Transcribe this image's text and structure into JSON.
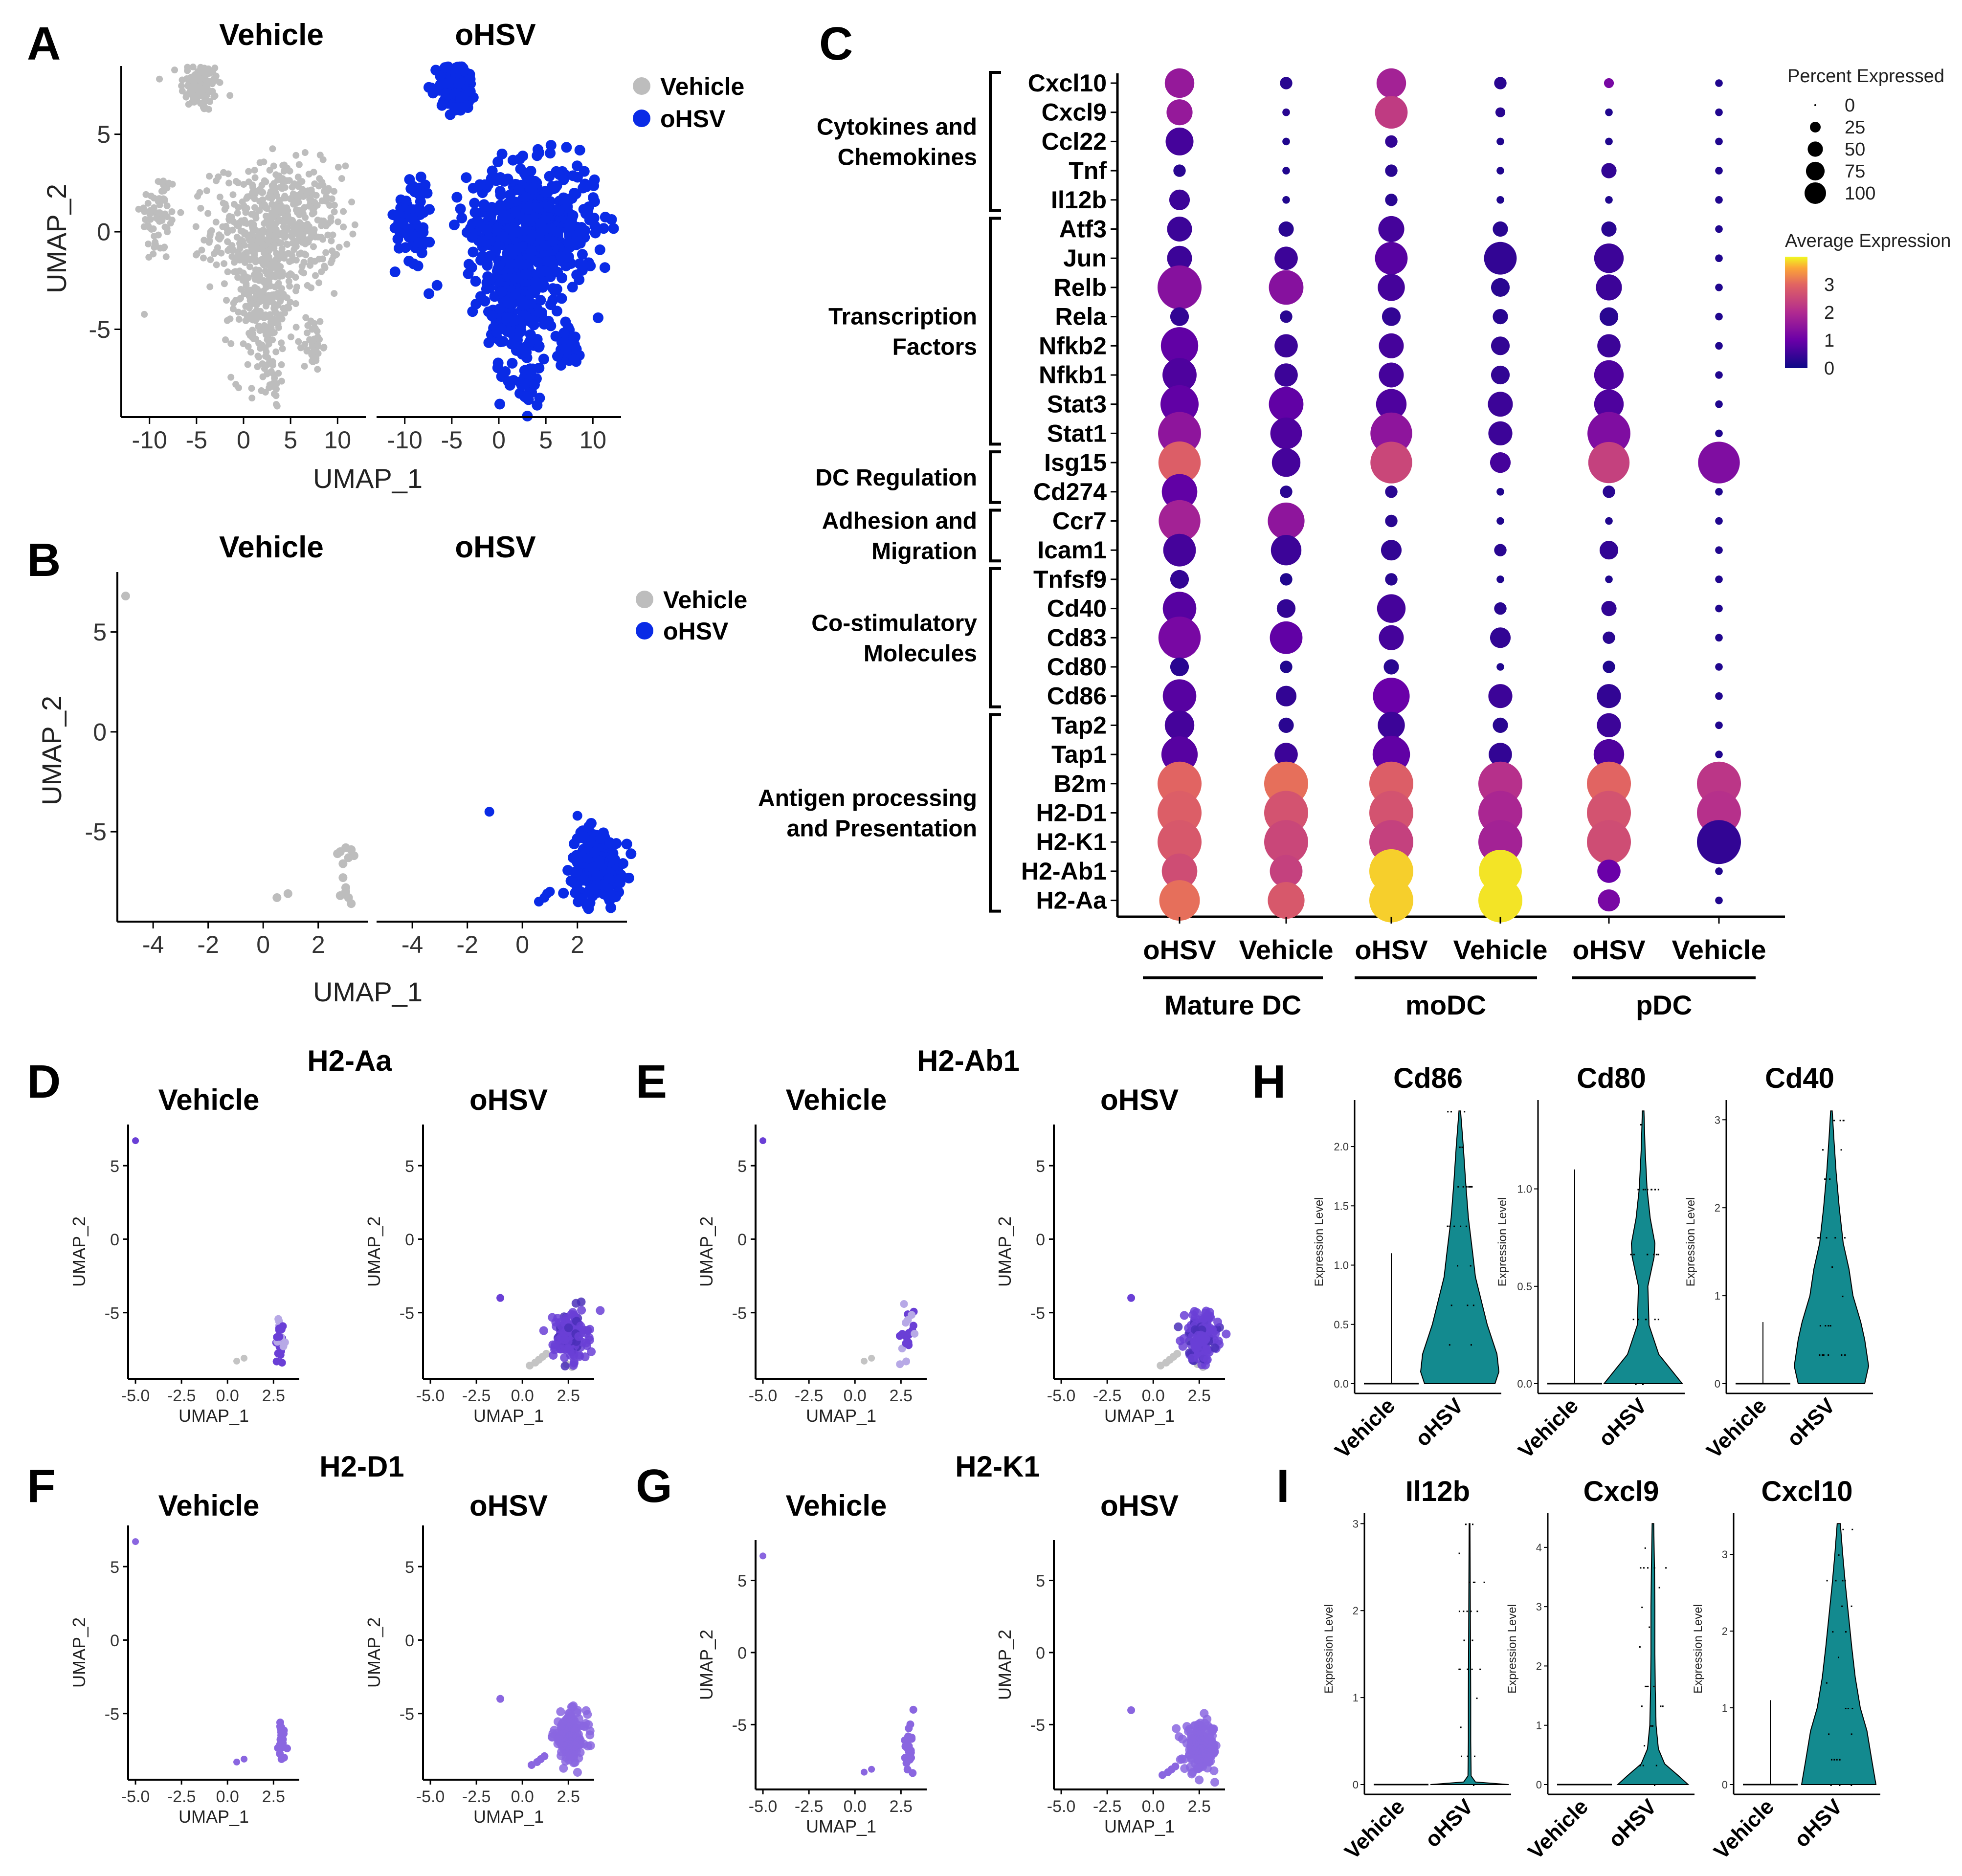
{
  "figure": {
    "panel_letters": [
      "A",
      "B",
      "C",
      "D",
      "E",
      "F",
      "G",
      "H",
      "I"
    ],
    "group_labels": [
      "Vehicle",
      "oHSV"
    ],
    "colors": {
      "vehicle": "#bdbdbd",
      "ohsv": "#0a2be6",
      "purple": "#6a3fd6",
      "violin": "#138a8f"
    }
  },
  "chart_data": [
    {
      "id": "A",
      "type": "scatter",
      "title_left": "Vehicle",
      "title_right": "oHSV",
      "xlabel": "UMAP_1",
      "ylabel": "UMAP_2",
      "xticks": [
        "-10",
        "-5",
        "0",
        "5",
        "10"
      ],
      "yticks": [
        "5",
        "0",
        "-5"
      ],
      "xlim": [
        -13,
        13
      ],
      "ylim": [
        -9.5,
        8.5
      ],
      "legend": [
        {
          "label": "Vehicle",
          "color": "#bdbdbd"
        },
        {
          "label": "oHSV",
          "color": "#0a2be6"
        }
      ],
      "clusters": [
        {
          "cx": -4.5,
          "cy": 7.5,
          "sx": 1.1,
          "sy": 0.7,
          "n": 110
        },
        {
          "cx": -9,
          "cy": 0.8,
          "sx": 1.0,
          "sy": 1.2,
          "n": 70
        },
        {
          "cx": 3.5,
          "cy": 0.2,
          "sx": 3.4,
          "sy": 1.6,
          "n": 520
        },
        {
          "cx": 2.0,
          "cy": -3.6,
          "sx": 1.6,
          "sy": 2.0,
          "n": 240
        },
        {
          "cx": 7.4,
          "cy": -5.8,
          "sx": 0.5,
          "sy": 0.7,
          "n": 40
        },
        {
          "cx": 3.0,
          "cy": -8.0,
          "sx": 0.4,
          "sy": 0.5,
          "n": 20
        }
      ]
    },
    {
      "id": "B",
      "type": "scatter",
      "title_left": "Vehicle",
      "title_right": "oHSV",
      "xlabel": "UMAP_1",
      "ylabel": "UMAP_2",
      "xticks": [
        "-4",
        "-2",
        "0",
        "2"
      ],
      "yticks": [
        "5",
        "0",
        "-5"
      ],
      "xlim": [
        -5.3,
        3.8
      ],
      "ylim": [
        -9.5,
        8.0
      ],
      "legend": [
        {
          "label": "Vehicle",
          "color": "#bdbdbd"
        },
        {
          "label": "oHSV",
          "color": "#0a2be6"
        }
      ],
      "vehicle_points": [
        [
          -5.0,
          6.8
        ],
        [
          0.5,
          -8.3
        ],
        [
          0.9,
          -8.1
        ],
        [
          2.8,
          -6.0
        ],
        [
          3.0,
          -5.8
        ],
        [
          3.1,
          -6.3
        ],
        [
          2.9,
          -6.6
        ],
        [
          3.2,
          -5.9
        ],
        [
          2.9,
          -7.3
        ],
        [
          3.0,
          -7.8
        ],
        [
          3.1,
          -8.3
        ],
        [
          2.8,
          -8.2
        ],
        [
          3.2,
          -8.6
        ],
        [
          3.0,
          -8.0
        ],
        [
          2.7,
          -6.1
        ],
        [
          3.3,
          -6.2
        ]
      ],
      "ohsv_cluster": {
        "cx": 2.7,
        "cy": -6.6,
        "sx": 0.45,
        "sy": 0.85,
        "n": 260
      },
      "ohsv_points": [
        [
          -1.2,
          -4.0
        ],
        [
          0.6,
          -8.5
        ],
        [
          0.8,
          -8.3
        ],
        [
          0.9,
          -8.1
        ],
        [
          1.0,
          -8.0
        ],
        [
          2.0,
          -4.2
        ]
      ]
    },
    {
      "id": "C",
      "type": "dotplot",
      "genes": [
        "Cxcl10",
        "Cxcl9",
        "Ccl22",
        "Tnf",
        "Il12b",
        "Atf3",
        "Jun",
        "Relb",
        "Rela",
        "Nfkb2",
        "Nfkb1",
        "Stat3",
        "Stat1",
        "Isg15",
        "Cd274",
        "Ccr7",
        "Icam1",
        "Tnfsf9",
        "Cd40",
        "Cd83",
        "Cd80",
        "Cd86",
        "Tap2",
        "Tap1",
        "B2m",
        "H2-D1",
        "H2-K1",
        "H2-Ab1",
        "H2-Aa"
      ],
      "categories": [
        {
          "label": "Cytokines and Chemokines",
          "lines": [
            "Cytokines and",
            "Chemokines"
          ],
          "from": 0,
          "to": 4
        },
        {
          "label": "Transcription Factors",
          "lines": [
            "Transcription",
            "Factors"
          ],
          "from": 5,
          "to": 12
        },
        {
          "label": "DC Regulation",
          "lines": [
            "DC Regulation"
          ],
          "from": 13,
          "to": 14
        },
        {
          "label": "Adhesion and Migration",
          "lines": [
            "Adhesion and",
            "Migration"
          ],
          "from": 15,
          "to": 16
        },
        {
          "label": "Co-stimulatory Molecules",
          "lines": [
            "Co-stimulatory",
            "Molecules"
          ],
          "from": 17,
          "to": 21
        },
        {
          "label": "Antigen processing and Presentation",
          "lines": [
            "Antigen processing",
            "and Presentation"
          ],
          "from": 22,
          "to": 28
        }
      ],
      "columns": [
        "oHSV",
        "Vehicle",
        "oHSV",
        "Vehicle",
        "oHSV",
        "Vehicle"
      ],
      "column_groups": [
        {
          "label": "Mature DC",
          "cols": [
            0,
            1
          ]
        },
        {
          "label": "moDC",
          "cols": [
            2,
            3
          ]
        },
        {
          "label": "pDC",
          "cols": [
            4,
            5
          ]
        }
      ],
      "legend_size_title": "Percent Expressed",
      "legend_size_values": [
        "0",
        "25",
        "50",
        "75",
        "100"
      ],
      "legend_color_title": "Average Expression",
      "legend_color_ticks": [
        "3",
        "2",
        "1",
        "0"
      ],
      "pct": [
        [
          45,
          8,
          45,
          8,
          5,
          3
        ],
        [
          35,
          3,
          55,
          5,
          3,
          3
        ],
        [
          40,
          3,
          8,
          3,
          3,
          3
        ],
        [
          8,
          3,
          8,
          3,
          12,
          3
        ],
        [
          22,
          3,
          8,
          3,
          3,
          3
        ],
        [
          32,
          12,
          35,
          12,
          12,
          3
        ],
        [
          32,
          28,
          55,
          55,
          45,
          3
        ],
        [
          100,
          62,
          38,
          18,
          35,
          3
        ],
        [
          18,
          8,
          18,
          12,
          18,
          3
        ],
        [
          72,
          28,
          32,
          18,
          28,
          3
        ],
        [
          60,
          28,
          32,
          18,
          45,
          3
        ],
        [
          75,
          62,
          48,
          32,
          45,
          3
        ],
        [
          95,
          52,
          90,
          30,
          95,
          3
        ],
        [
          92,
          42,
          90,
          22,
          88,
          90
        ],
        [
          65,
          8,
          8,
          3,
          8,
          3
        ],
        [
          90,
          70,
          8,
          3,
          3,
          3
        ],
        [
          55,
          48,
          22,
          8,
          18,
          3
        ],
        [
          18,
          8,
          8,
          3,
          3,
          3
        ],
        [
          58,
          18,
          42,
          8,
          12,
          3
        ],
        [
          92,
          55,
          32,
          22,
          8,
          3
        ],
        [
          18,
          8,
          12,
          3,
          8,
          3
        ],
        [
          58,
          22,
          70,
          30,
          30,
          3
        ],
        [
          45,
          12,
          38,
          12,
          30,
          3
        ],
        [
          68,
          28,
          72,
          28,
          48,
          3
        ],
        [
          100,
          100,
          100,
          100,
          100,
          100
        ],
        [
          100,
          100,
          100,
          100,
          100,
          100
        ],
        [
          100,
          100,
          100,
          100,
          100,
          100
        ],
        [
          65,
          55,
          100,
          95,
          28,
          3
        ],
        [
          85,
          70,
          100,
          100,
          25,
          3
        ]
      ],
      "avg": [
        [
          1.6,
          0.3,
          1.8,
          0.3,
          1.2,
          0.2
        ],
        [
          1.6,
          0.3,
          2.3,
          0.3,
          0.2,
          0.2
        ],
        [
          0.6,
          0.2,
          0.4,
          0.2,
          0.2,
          0.2
        ],
        [
          0.3,
          0.2,
          0.3,
          0.2,
          0.4,
          0.2
        ],
        [
          0.5,
          0.2,
          0.3,
          0.2,
          0.2,
          0.2
        ],
        [
          0.5,
          0.3,
          0.6,
          0.3,
          0.3,
          0.2
        ],
        [
          0.5,
          0.5,
          0.8,
          0.4,
          0.5,
          0.2
        ],
        [
          1.4,
          1.4,
          0.6,
          0.3,
          0.5,
          0.2
        ],
        [
          0.4,
          0.3,
          0.4,
          0.3,
          0.3,
          0.2
        ],
        [
          0.9,
          0.5,
          0.6,
          0.4,
          0.5,
          0.2
        ],
        [
          0.7,
          0.5,
          0.6,
          0.4,
          0.7,
          0.2
        ],
        [
          0.9,
          0.9,
          0.7,
          0.5,
          0.7,
          0.2
        ],
        [
          1.5,
          0.7,
          1.5,
          0.5,
          1.3,
          0.2
        ],
        [
          2.9,
          0.6,
          2.5,
          0.6,
          2.4,
          1.3
        ],
        [
          0.9,
          0.3,
          0.3,
          0.2,
          0.3,
          0.2
        ],
        [
          1.8,
          1.5,
          0.3,
          0.2,
          0.2,
          0.2
        ],
        [
          0.6,
          0.5,
          0.4,
          0.3,
          0.4,
          0.2
        ],
        [
          0.4,
          0.2,
          0.3,
          0.2,
          0.2,
          0.2
        ],
        [
          0.8,
          0.4,
          0.6,
          0.3,
          0.4,
          0.2
        ],
        [
          1.2,
          0.9,
          0.6,
          0.4,
          0.3,
          0.2
        ],
        [
          0.3,
          0.2,
          0.3,
          0.2,
          0.2,
          0.2
        ],
        [
          0.8,
          0.4,
          1.0,
          0.5,
          0.4,
          0.2
        ],
        [
          0.6,
          0.3,
          0.5,
          0.3,
          0.5,
          0.2
        ],
        [
          0.8,
          0.5,
          0.9,
          0.4,
          0.7,
          0.2
        ],
        [
          3.0,
          3.1,
          2.9,
          2.1,
          3.0,
          2.2
        ],
        [
          2.9,
          2.7,
          2.7,
          1.9,
          2.7,
          2.1
        ],
        [
          2.8,
          2.5,
          2.4,
          1.8,
          2.6,
          0.4
        ],
        [
          2.6,
          2.4,
          3.8,
          3.9,
          1.0,
          0.2
        ],
        [
          3.1,
          2.8,
          3.8,
          3.9,
          1.2,
          0.2
        ]
      ]
    },
    {
      "id": "D-G",
      "type": "scatter",
      "gene_titles": [
        "H2-Aa",
        "H2-Ab1",
        "H2-D1",
        "H2-K1"
      ],
      "subtitle_left": "Vehicle",
      "subtitle_right": "oHSV",
      "xlabel": "UMAP_1",
      "ylabel": "UMAP_2",
      "xticks": [
        "-5.0",
        "-2.5",
        "0.0",
        "2.5"
      ],
      "yticks": [
        "5",
        "0",
        "-5"
      ],
      "xlim": [
        -5.4,
        3.9
      ],
      "ylim": [
        -9.5,
        7.8
      ]
    },
    {
      "id": "H",
      "type": "violin",
      "groups": [
        "Vehicle",
        "oHSV"
      ],
      "ylabel": "Expression Level",
      "panels": [
        {
          "title": "Cd86",
          "yticks": [
            "0.0",
            "0.5",
            "1.0",
            "1.5",
            "2.0"
          ],
          "ymax": 2.3,
          "veh_max": 1.1,
          "ohsv_max": 2.3,
          "ohsv_profile": [
            [
              0,
              0.9
            ],
            [
              0.1,
              1.0
            ],
            [
              0.25,
              0.95
            ],
            [
              0.5,
              0.7
            ],
            [
              0.7,
              0.55
            ],
            [
              0.9,
              0.4
            ],
            [
              1.1,
              0.33
            ],
            [
              1.4,
              0.22
            ],
            [
              1.7,
              0.15
            ],
            [
              2.0,
              0.09
            ],
            [
              2.3,
              0.02
            ]
          ]
        },
        {
          "title": "Cd80",
          "yticks": [
            "0.0",
            "0.5",
            "1.0"
          ],
          "ymax": 1.4,
          "veh_max": 1.1,
          "ohsv_max": 1.4,
          "ohsv_profile": [
            [
              0,
              1.0
            ],
            [
              0.05,
              0.8
            ],
            [
              0.15,
              0.4
            ],
            [
              0.3,
              0.15
            ],
            [
              0.5,
              0.12
            ],
            [
              0.65,
              0.28
            ],
            [
              0.72,
              0.3
            ],
            [
              0.85,
              0.18
            ],
            [
              1.0,
              0.1
            ],
            [
              1.2,
              0.05
            ],
            [
              1.4,
              0.02
            ]
          ]
        },
        {
          "title": "Cd40",
          "yticks": [
            "0",
            "1",
            "2",
            "3"
          ],
          "ymax": 3.1,
          "veh_max": 0.7,
          "ohsv_max": 3.1,
          "ohsv_profile": [
            [
              0,
              0.85
            ],
            [
              0.2,
              0.95
            ],
            [
              0.5,
              0.85
            ],
            [
              0.7,
              0.75
            ],
            [
              1.0,
              0.55
            ],
            [
              1.3,
              0.45
            ],
            [
              1.6,
              0.3
            ],
            [
              2.0,
              0.2
            ],
            [
              2.4,
              0.12
            ],
            [
              2.8,
              0.06
            ],
            [
              3.1,
              0.02
            ]
          ]
        }
      ]
    },
    {
      "id": "I",
      "type": "violin",
      "groups": [
        "Vehicle",
        "oHSV"
      ],
      "ylabel": "Expression Level",
      "panels": [
        {
          "title": "Il12b",
          "yticks": [
            "0",
            "1",
            "2",
            "3"
          ],
          "ymax": 3.0,
          "veh_max": 0.0,
          "ohsv_max": 3.0,
          "ohsv_profile": [
            [
              0,
              1.0
            ],
            [
              0.03,
              0.15
            ],
            [
              0.1,
              0.04
            ],
            [
              0.5,
              0.03
            ],
            [
              1.0,
              0.03
            ],
            [
              2.0,
              0.02
            ],
            [
              3.0,
              0.01
            ]
          ]
        },
        {
          "title": "Cxcl9",
          "yticks": [
            "0",
            "1",
            "2",
            "3",
            "4"
          ],
          "ymax": 4.4,
          "veh_max": 0.0,
          "ohsv_max": 4.4,
          "ohsv_profile": [
            [
              0,
              0.9
            ],
            [
              0.15,
              0.65
            ],
            [
              0.35,
              0.3
            ],
            [
              0.6,
              0.14
            ],
            [
              1.0,
              0.08
            ],
            [
              1.6,
              0.06
            ],
            [
              2.2,
              0.05
            ],
            [
              3.0,
              0.05
            ],
            [
              3.6,
              0.04
            ],
            [
              4.4,
              0.02
            ]
          ]
        },
        {
          "title": "Cxcl10",
          "yticks": [
            "0",
            "1",
            "2",
            "3"
          ],
          "ymax": 3.4,
          "veh_max": 1.1,
          "ohsv_max": 3.4,
          "ohsv_profile": [
            [
              0,
              0.95
            ],
            [
              0.3,
              0.85
            ],
            [
              0.7,
              0.72
            ],
            [
              1.0,
              0.55
            ],
            [
              1.4,
              0.42
            ],
            [
              1.8,
              0.33
            ],
            [
              2.2,
              0.25
            ],
            [
              2.6,
              0.17
            ],
            [
              3.0,
              0.1
            ],
            [
              3.4,
              0.04
            ]
          ]
        }
      ]
    }
  ]
}
